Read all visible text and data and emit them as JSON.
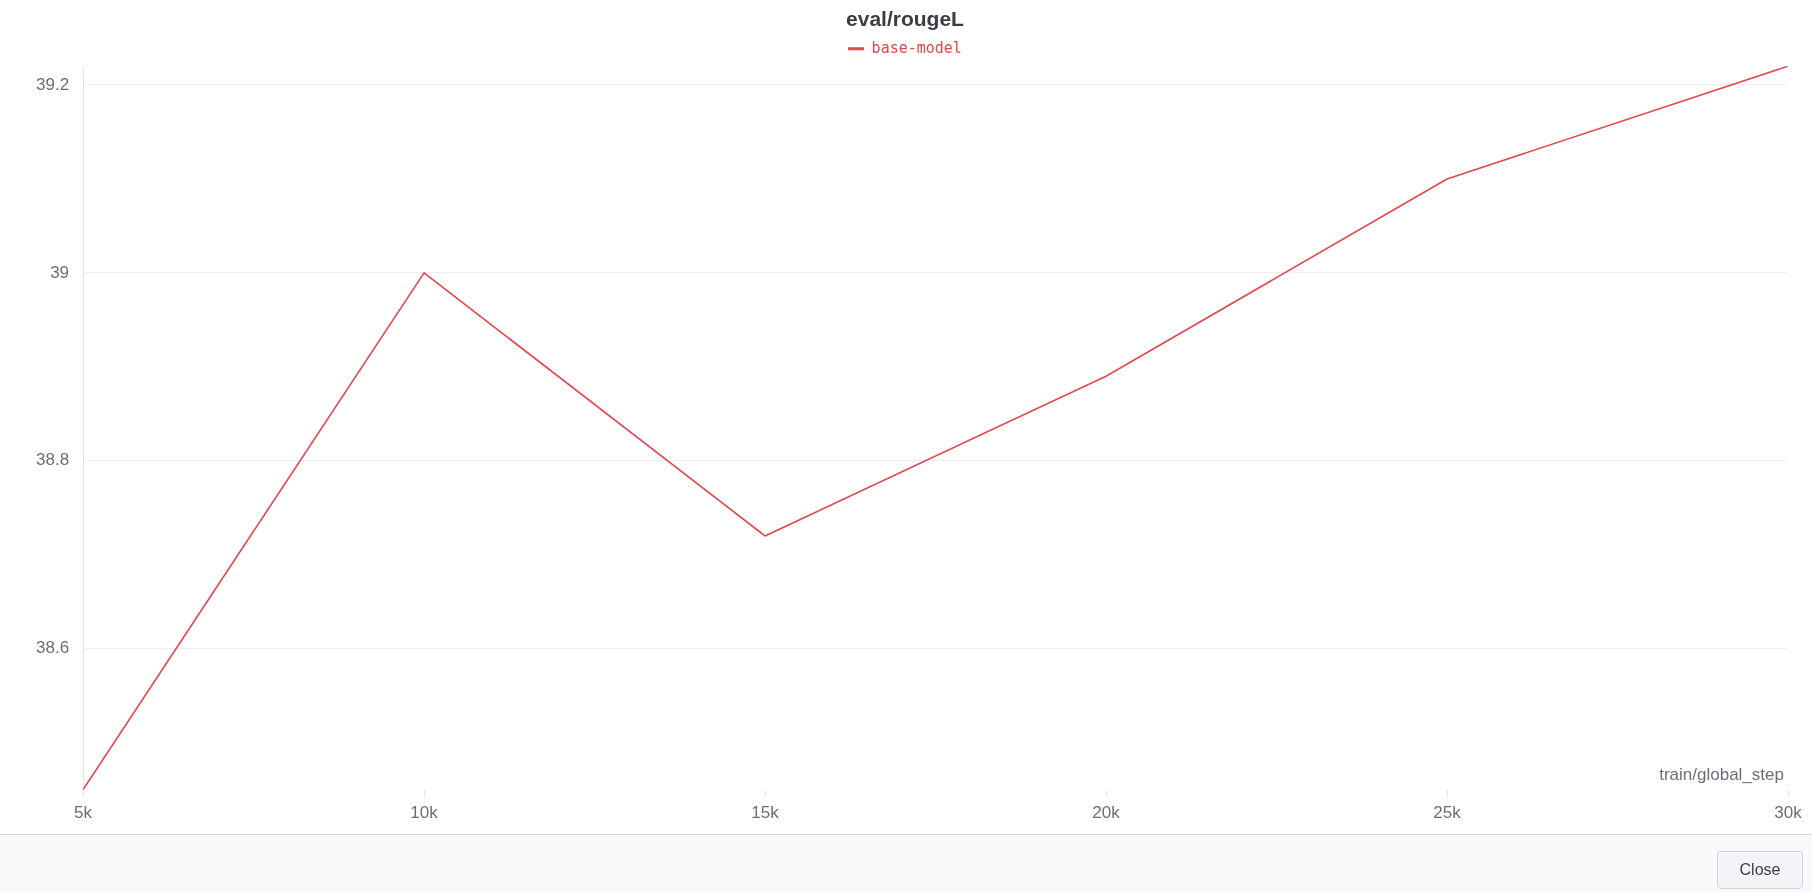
{
  "chart_data": {
    "type": "line",
    "title": "eval/rougeL",
    "xlabel": "train/global_step",
    "x": [
      5000,
      10000,
      15000,
      20000,
      25000,
      30000
    ],
    "series": [
      {
        "name": "base-model",
        "color": "#e5454d",
        "values": [
          38.45,
          39.0,
          38.72,
          38.89,
          39.1,
          39.22
        ]
      }
    ],
    "xlim": [
      5000,
      30000
    ],
    "xticks": [
      {
        "value": 5000,
        "label": "5k"
      },
      {
        "value": 10000,
        "label": "10k"
      },
      {
        "value": 15000,
        "label": "15k"
      },
      {
        "value": 20000,
        "label": "20k"
      },
      {
        "value": 25000,
        "label": "25k"
      },
      {
        "value": 30000,
        "label": "30k"
      }
    ],
    "ylim": [
      38.45,
      39.22
    ],
    "yticks": [
      38.6,
      38.8,
      39,
      39.2
    ],
    "grid": "y",
    "legend": "top",
    "marker": "none",
    "line_style": "solid",
    "annotations": [
      "Close"
    ]
  }
}
